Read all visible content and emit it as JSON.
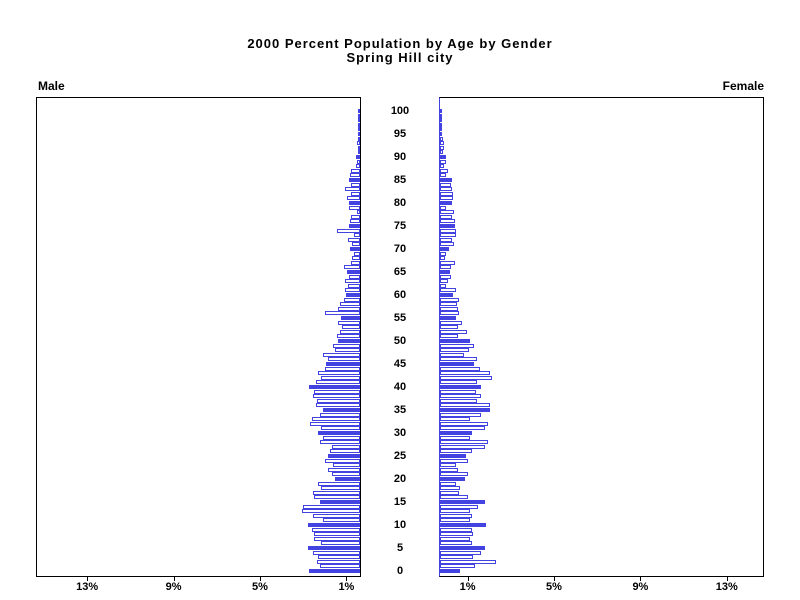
{
  "title": {
    "line1": "2000 Percent Population by Age by Gender",
    "line2": "Spring Hill city"
  },
  "labels": {
    "male": "Male",
    "female": "Female"
  },
  "colors": {
    "bar_blue": "#4343e2",
    "axis_black": "#000000",
    "background": "#ffffff"
  },
  "axis": {
    "left_tick_labels": [
      "13%",
      "9%",
      "5%",
      "1%"
    ],
    "right_tick_labels": [
      "1%",
      "5%",
      "9%",
      "13%"
    ],
    "tick_percents_left": [
      13,
      9,
      5,
      1
    ],
    "tick_percents_right": [
      1,
      5,
      9,
      13
    ],
    "age_ticks": [
      0,
      5,
      10,
      15,
      20,
      25,
      30,
      35,
      40,
      45,
      50,
      55,
      60,
      65,
      70,
      75,
      80,
      85,
      90,
      95,
      100
    ]
  },
  "chart_data": {
    "type": "bar",
    "subtype": "population-pyramid",
    "title": "2000 Percent Population by Age by Gender",
    "subtitle": "Spring Hill city",
    "x_unit": "percent of total population",
    "xlim_each_side": [
      0,
      15
    ],
    "age_min": 0,
    "age_max": 100,
    "age_axis_tick_interval": 5,
    "filled_bar_every": 5,
    "legend_position": "none",
    "grid": false,
    "series": [
      {
        "name": "Male",
        "side": "left",
        "values": [
          2.35,
          1.87,
          1.98,
          1.95,
          2.19,
          2.43,
          1.79,
          2.11,
          2.14,
          2.24,
          2.4,
          1.71,
          2.19,
          2.67,
          2.62,
          1.87,
          2.11,
          2.19,
          1.79,
          1.95,
          1.16,
          1.32,
          1.48,
          1.24,
          1.63,
          1.48,
          1.4,
          1.32,
          1.87,
          1.71,
          1.95,
          1.79,
          2.3,
          2.24,
          1.87,
          1.71,
          2.03,
          1.98,
          2.19,
          2.11,
          2.35,
          2.03,
          1.79,
          1.95,
          1.63,
          1.56,
          1.48,
          1.71,
          1.16,
          1.24,
          1.0,
          1.08,
          0.92,
          0.84,
          1.0,
          0.87,
          1.6,
          1.0,
          0.92,
          0.76,
          0.65,
          0.71,
          0.55,
          0.68,
          0.52,
          0.6,
          0.76,
          0.44,
          0.36,
          0.28,
          0.45,
          0.35,
          0.55,
          0.3,
          1.05,
          0.5,
          0.45,
          0.4,
          0.15,
          0.5,
          0.5,
          0.6,
          0.4,
          0.7,
          0.4,
          0.5,
          0.45,
          0.4,
          0.2,
          0.15,
          0.2,
          0.1,
          0.1,
          0.15,
          0.1,
          0.1,
          0.05,
          0.1,
          0.05,
          0.02,
          0.02
        ]
      },
      {
        "name": "Female",
        "side": "right",
        "values": [
          0.91,
          1.6,
          2.6,
          1.53,
          1.92,
          2.08,
          1.46,
          1.38,
          1.53,
          1.46,
          2.15,
          1.38,
          1.46,
          1.38,
          1.77,
          2.08,
          1.3,
          0.87,
          0.91,
          0.76,
          1.15,
          1.3,
          0.84,
          0.76,
          1.3,
          1.22,
          1.46,
          2.08,
          2.23,
          1.38,
          1.46,
          2.08,
          2.23,
          1.38,
          1.92,
          2.3,
          2.33,
          1.7,
          1.88,
          1.65,
          1.88,
          1.73,
          2.4,
          2.33,
          1.85,
          1.58,
          1.7,
          1.13,
          1.35,
          1.58,
          1.4,
          0.82,
          1.25,
          0.85,
          1.0,
          0.75,
          0.9,
          0.85,
          0.8,
          0.9,
          0.6,
          0.72,
          0.3,
          0.38,
          0.5,
          0.45,
          0.53,
          0.7,
          0.22,
          0.3,
          0.4,
          0.65,
          0.55,
          0.75,
          0.75,
          0.7,
          0.7,
          0.55,
          0.65,
          0.3,
          0.55,
          0.6,
          0.6,
          0.55,
          0.5,
          0.55,
          0.3,
          0.35,
          0.2,
          0.3,
          0.3,
          0.15,
          0.2,
          0.2,
          0.15,
          0.1,
          0.05,
          0.08,
          0.05,
          0.03,
          0.03
        ]
      }
    ]
  }
}
